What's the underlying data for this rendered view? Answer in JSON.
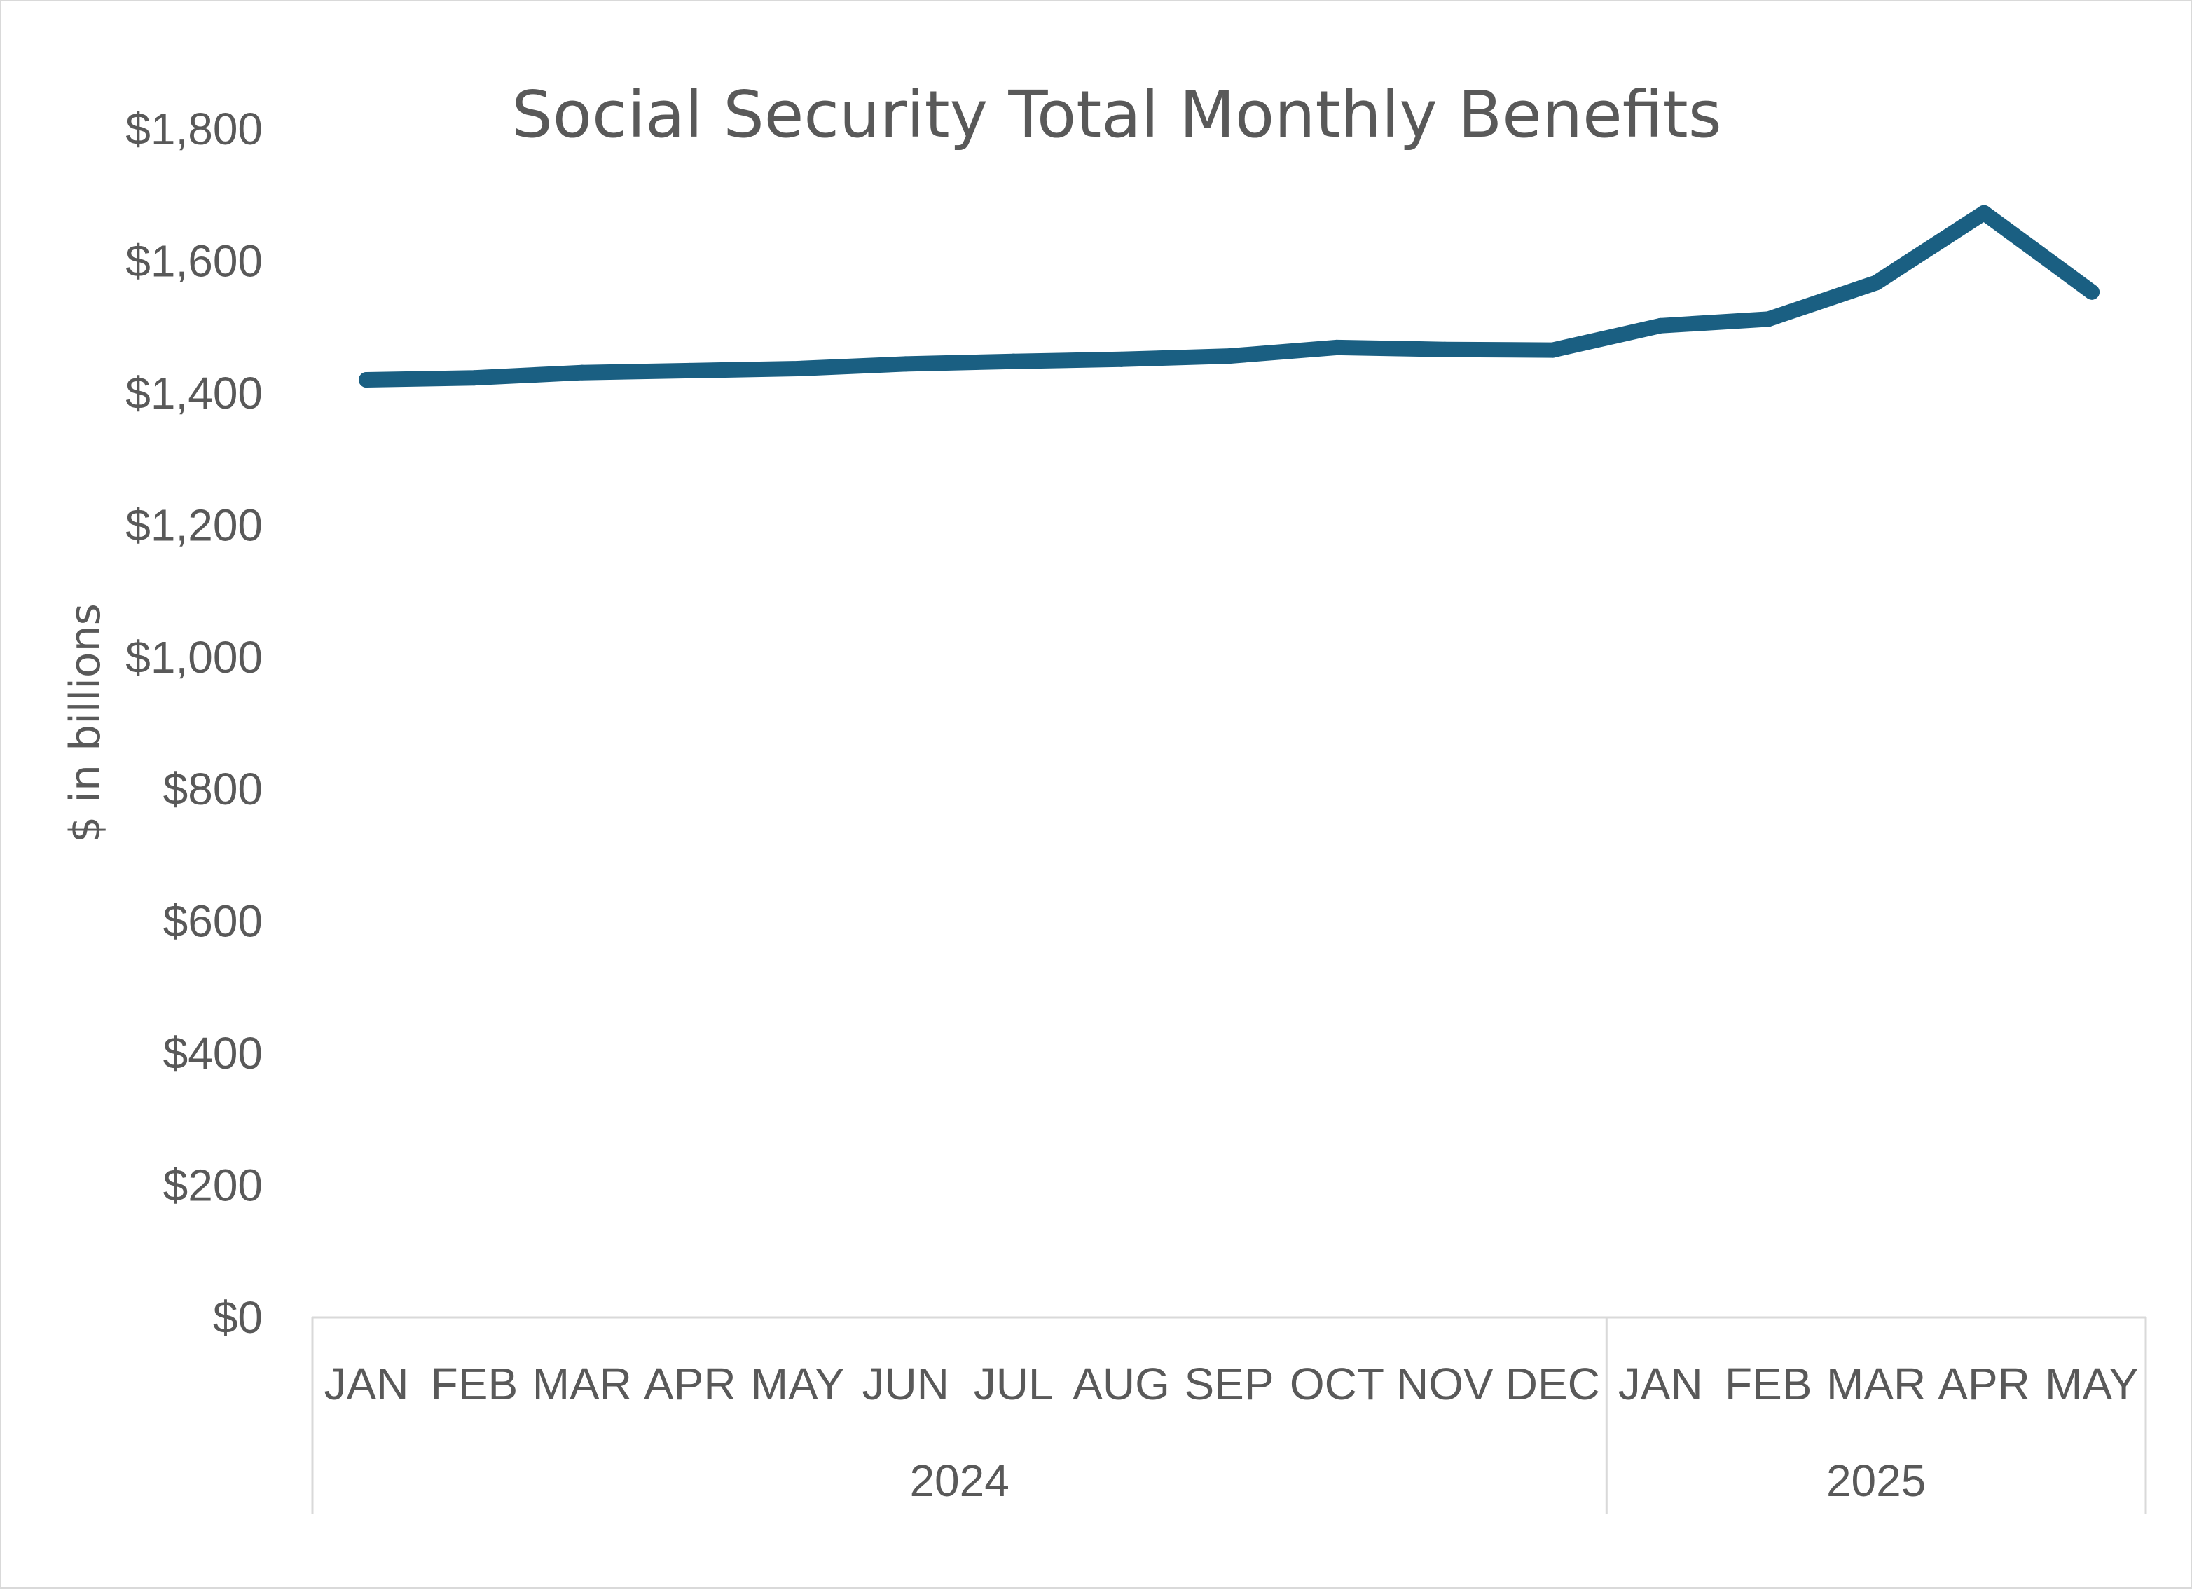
{
  "chart_data": {
    "type": "line",
    "title": "Social Security Total Monthly Benefits",
    "xlabel": "",
    "ylabel": "$ in billions",
    "ylim": [
      0,
      1800
    ],
    "ytick_values": [
      0,
      200,
      400,
      600,
      800,
      1000,
      1200,
      1400,
      1600,
      1800
    ],
    "ytick_labels": [
      "$0",
      "$200",
      "$400",
      "$600",
      "$800",
      "$1,000",
      "$1,200",
      "$1,400",
      "$1,600",
      "$1,800"
    ],
    "categories": [
      "JAN",
      "FEB",
      "MAR",
      "APR",
      "MAY",
      "JUN",
      "JUL",
      "AUG",
      "SEP",
      "OCT",
      "NOV",
      "DEC",
      "JAN",
      "FEB",
      "MAR",
      "APR",
      "MAY"
    ],
    "groups": [
      {
        "label": "2024",
        "count": 12
      },
      {
        "label": "2025",
        "count": 5
      }
    ],
    "grid": false,
    "legend": "none",
    "series": [
      {
        "name": "Total Monthly Benefits",
        "color": "#1a5f82",
        "values": [
          1420,
          1423,
          1431,
          1434,
          1437,
          1444,
          1448,
          1451,
          1456,
          1469,
          1466,
          1465,
          1502,
          1512,
          1567,
          1673,
          1553
        ]
      }
    ]
  }
}
